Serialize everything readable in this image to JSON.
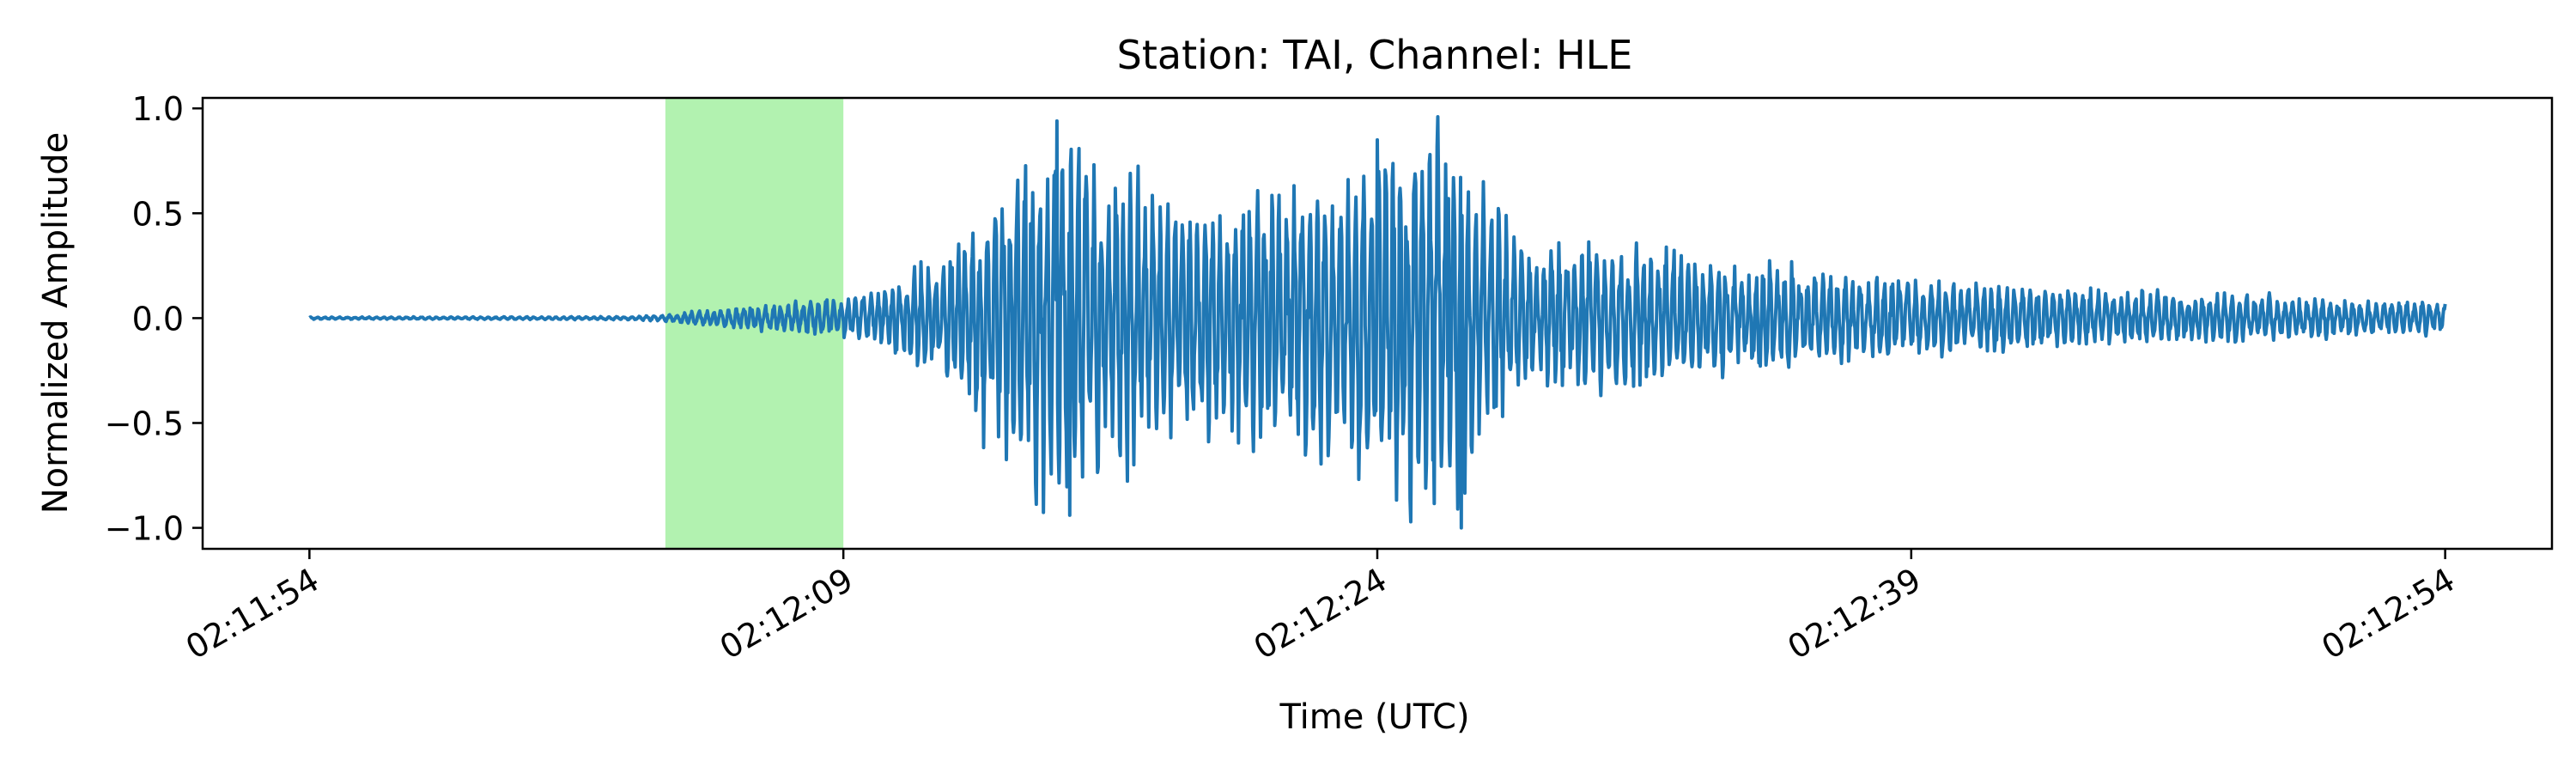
{
  "chart_data": {
    "type": "line",
    "title": "Station: TAI, Channel: HLE",
    "xlabel": "Time (UTC)",
    "ylabel": "Normalized Amplitude",
    "x_ticks": [
      "02:11:54",
      "02:12:09",
      "02:12:24",
      "02:12:39",
      "02:12:54"
    ],
    "y_ticks": [
      "1.0",
      "0.5",
      "0.0",
      "−0.5",
      "−1.0"
    ],
    "xlim": [
      "02:11:51",
      "02:12:57"
    ],
    "ylim": [
      -1.1,
      1.05
    ],
    "x_start": "02:11:54",
    "x_end": "02:12:54",
    "y_tick_values": [
      1.0,
      0.5,
      0.0,
      -0.5,
      -1.0
    ],
    "highlight_window": {
      "start": "02:12:04",
      "end": "02:12:09",
      "color": "#b2f2b0"
    },
    "line_color": "#1f77b4",
    "grid": false,
    "legend": "none",
    "envelope": [
      {
        "t": "02:11:54",
        "amp": 0.005
      },
      {
        "t": "02:12:03",
        "amp": 0.007
      },
      {
        "t": "02:12:04",
        "amp": 0.015
      },
      {
        "t": "02:12:06",
        "amp": 0.05
      },
      {
        "t": "02:12:09",
        "amp": 0.09
      },
      {
        "t": "02:12:10",
        "amp": 0.12
      },
      {
        "t": "02:12:12",
        "amp": 0.3
      },
      {
        "t": "02:12:14",
        "amp": 0.75
      },
      {
        "t": "02:12:15",
        "amp": 0.85
      },
      {
        "t": "02:12:18",
        "amp": 0.55
      },
      {
        "t": "02:12:20",
        "amp": 0.6
      },
      {
        "t": "02:12:23",
        "amp": 0.65
      },
      {
        "t": "02:12:24",
        "amp": 0.85
      },
      {
        "t": "02:12:26",
        "amp": 0.95
      },
      {
        "t": "02:12:28",
        "amp": 0.35
      },
      {
        "t": "02:12:32",
        "amp": 0.3
      },
      {
        "t": "02:12:37",
        "amp": 0.2
      },
      {
        "t": "02:12:45",
        "amp": 0.12
      },
      {
        "t": "02:12:54",
        "amp": 0.07
      }
    ],
    "peaks": [
      {
        "t": "02:12:15",
        "y": 0.94
      },
      {
        "t": "02:12:15",
        "y": -0.94
      },
      {
        "t": "02:12:24",
        "y": 0.85
      },
      {
        "t": "02:12:26",
        "y": -1.0
      },
      {
        "t": "02:12:26",
        "y": 0.57
      }
    ]
  }
}
